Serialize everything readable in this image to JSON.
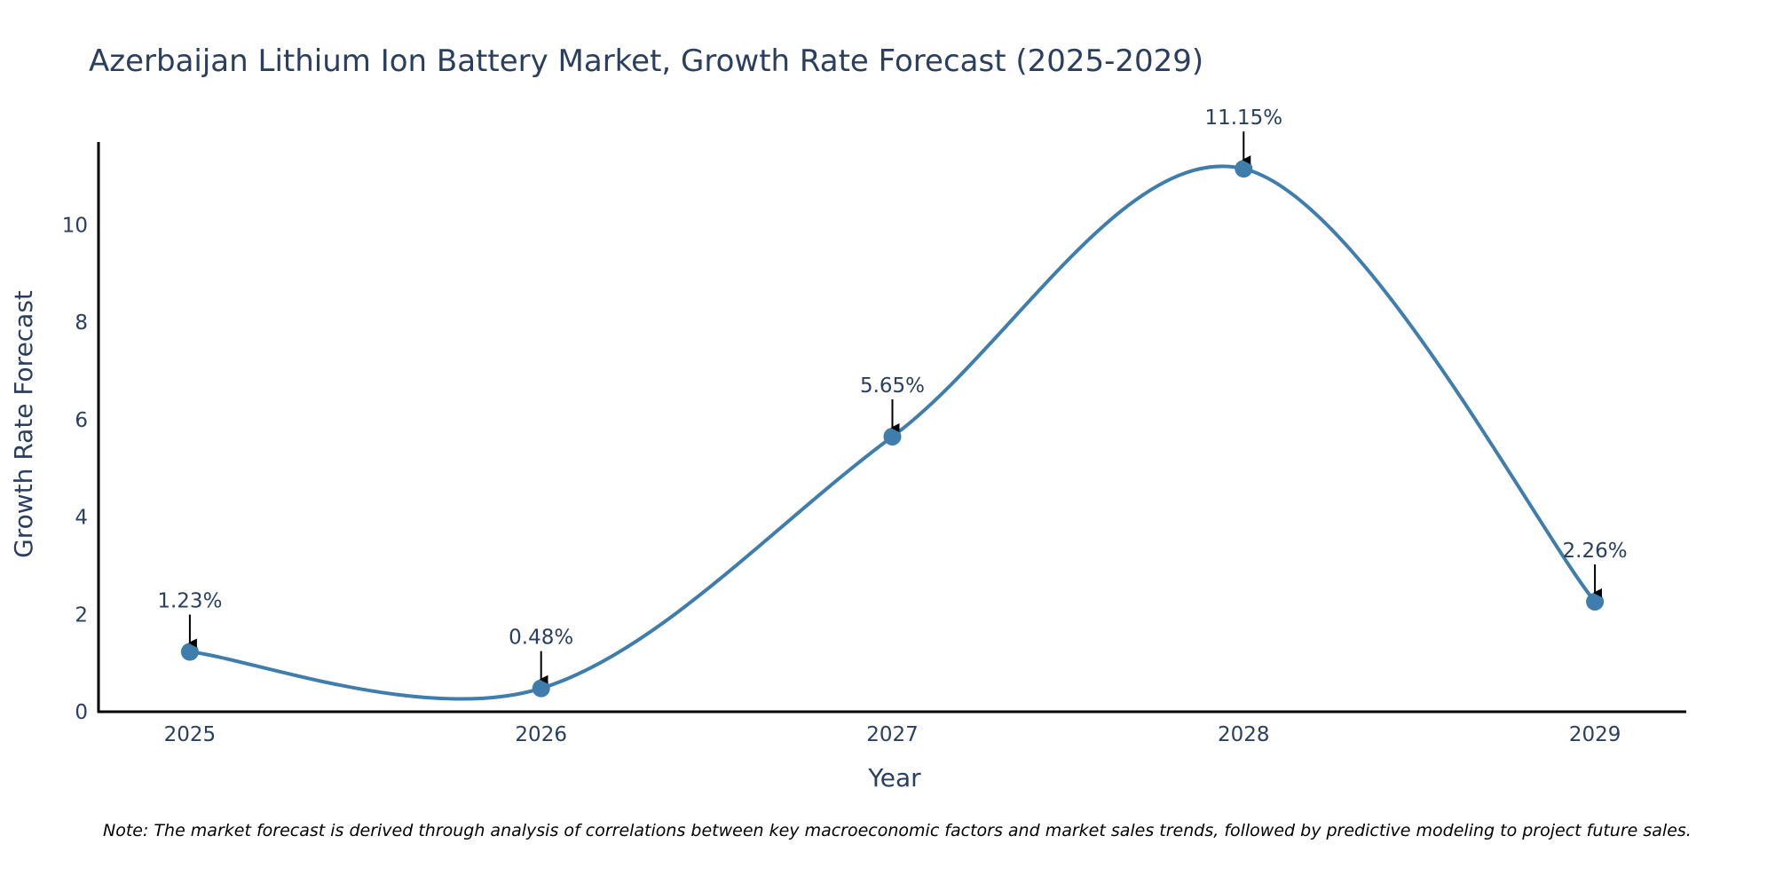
{
  "chart_data": {
    "type": "line",
    "title": "Azerbaijan Lithium Ion Battery Market, Growth Rate Forecast (2025-2029)",
    "xlabel": "Year",
    "ylabel": "Growth Rate Forecast",
    "categories": [
      "2025",
      "2026",
      "2027",
      "2028",
      "2029"
    ],
    "x": [
      2025,
      2026,
      2027,
      2028,
      2029
    ],
    "series": [
      {
        "name": "Growth Rate Forecast",
        "values": [
          1.23,
          0.48,
          5.65,
          11.15,
          2.26
        ],
        "labels": [
          "1.23%",
          "0.48%",
          "5.65%",
          "11.15%",
          "2.26%"
        ]
      }
    ],
    "ylim": [
      0,
      11.7
    ],
    "xlim": [
      2024.74,
      2029.26
    ],
    "yticks": [
      0,
      2,
      4,
      6,
      8,
      10
    ],
    "ytick_labels": [
      "0",
      "2",
      "4",
      "6",
      "8",
      "10"
    ],
    "grid": false,
    "legend": "none",
    "line_shape": "spline",
    "note": "Note: The market forecast is derived through analysis of correlations between key macroeconomic factors and market sales trends, followed by predictive modeling to project future sales."
  },
  "colors": {
    "line": "#3f7dad",
    "marker": "#3f7dad",
    "text": "#2a3f5f",
    "axis": "#000000",
    "arrow": "#000000",
    "note": "#000000",
    "background": "#ffffff"
  }
}
